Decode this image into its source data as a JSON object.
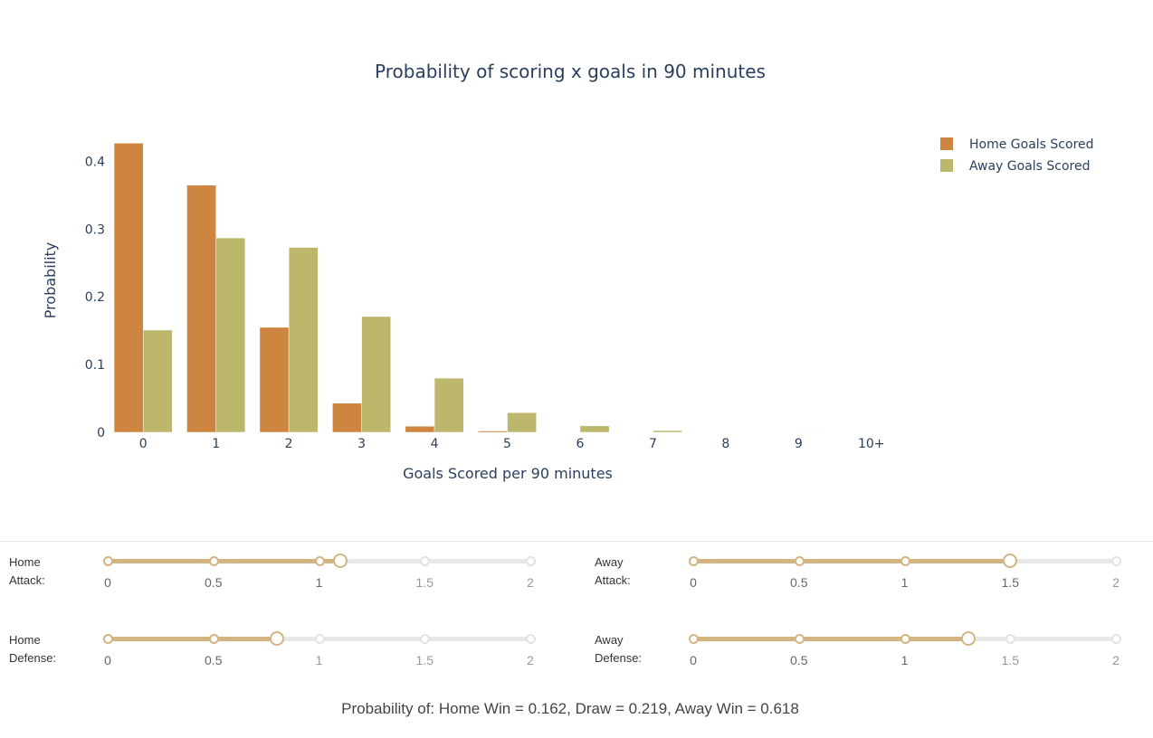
{
  "chart_data": {
    "type": "bar",
    "title": "Probability of scoring x goals in 90 minutes",
    "xlabel": "Goals Scored per 90 minutes",
    "ylabel": "Probability",
    "categories": [
      "0",
      "1",
      "2",
      "3",
      "4",
      "5",
      "6",
      "7",
      "8",
      "9",
      "10+"
    ],
    "series": [
      {
        "name": "Home Goals Scored",
        "color": "#cd853f",
        "values": [
          0.427,
          0.365,
          0.155,
          0.043,
          0.009,
          0.002,
          0.0003,
          3e-05,
          3e-06,
          3e-07,
          1e-07
        ]
      },
      {
        "name": "Away Goals Scored",
        "color": "#bdb76b",
        "values": [
          0.151,
          0.287,
          0.273,
          0.171,
          0.08,
          0.029,
          0.0095,
          0.0026,
          0.0006,
          0.00013,
          3e-05
        ]
      }
    ],
    "ylim": [
      0,
      0.43
    ],
    "yticks": [
      0,
      0.1,
      0.2,
      0.3,
      0.4
    ],
    "ytick_labels": [
      "0",
      "0.1",
      "0.2",
      "0.3",
      "0.4"
    ],
    "grid": false,
    "legend_position": "top-right"
  },
  "controls": {
    "marks": [
      "0",
      "0.5",
      "1",
      "1.5",
      "2"
    ],
    "min": 0,
    "max": 2,
    "accent_color": "#d4b483",
    "sliders": [
      {
        "label_line1": "Home",
        "label_line2": "Attack:",
        "value": 1.1
      },
      {
        "label_line1": "Away",
        "label_line2": "Attack:",
        "value": 1.5
      },
      {
        "label_line1": "Home",
        "label_line2": "Defense:",
        "value": 0.8
      },
      {
        "label_line1": "Away",
        "label_line2": "Defense:",
        "value": 1.3
      }
    ]
  },
  "result_text": "Probability of: Home Win = 0.162, Draw = 0.219, Away Win = 0.618"
}
